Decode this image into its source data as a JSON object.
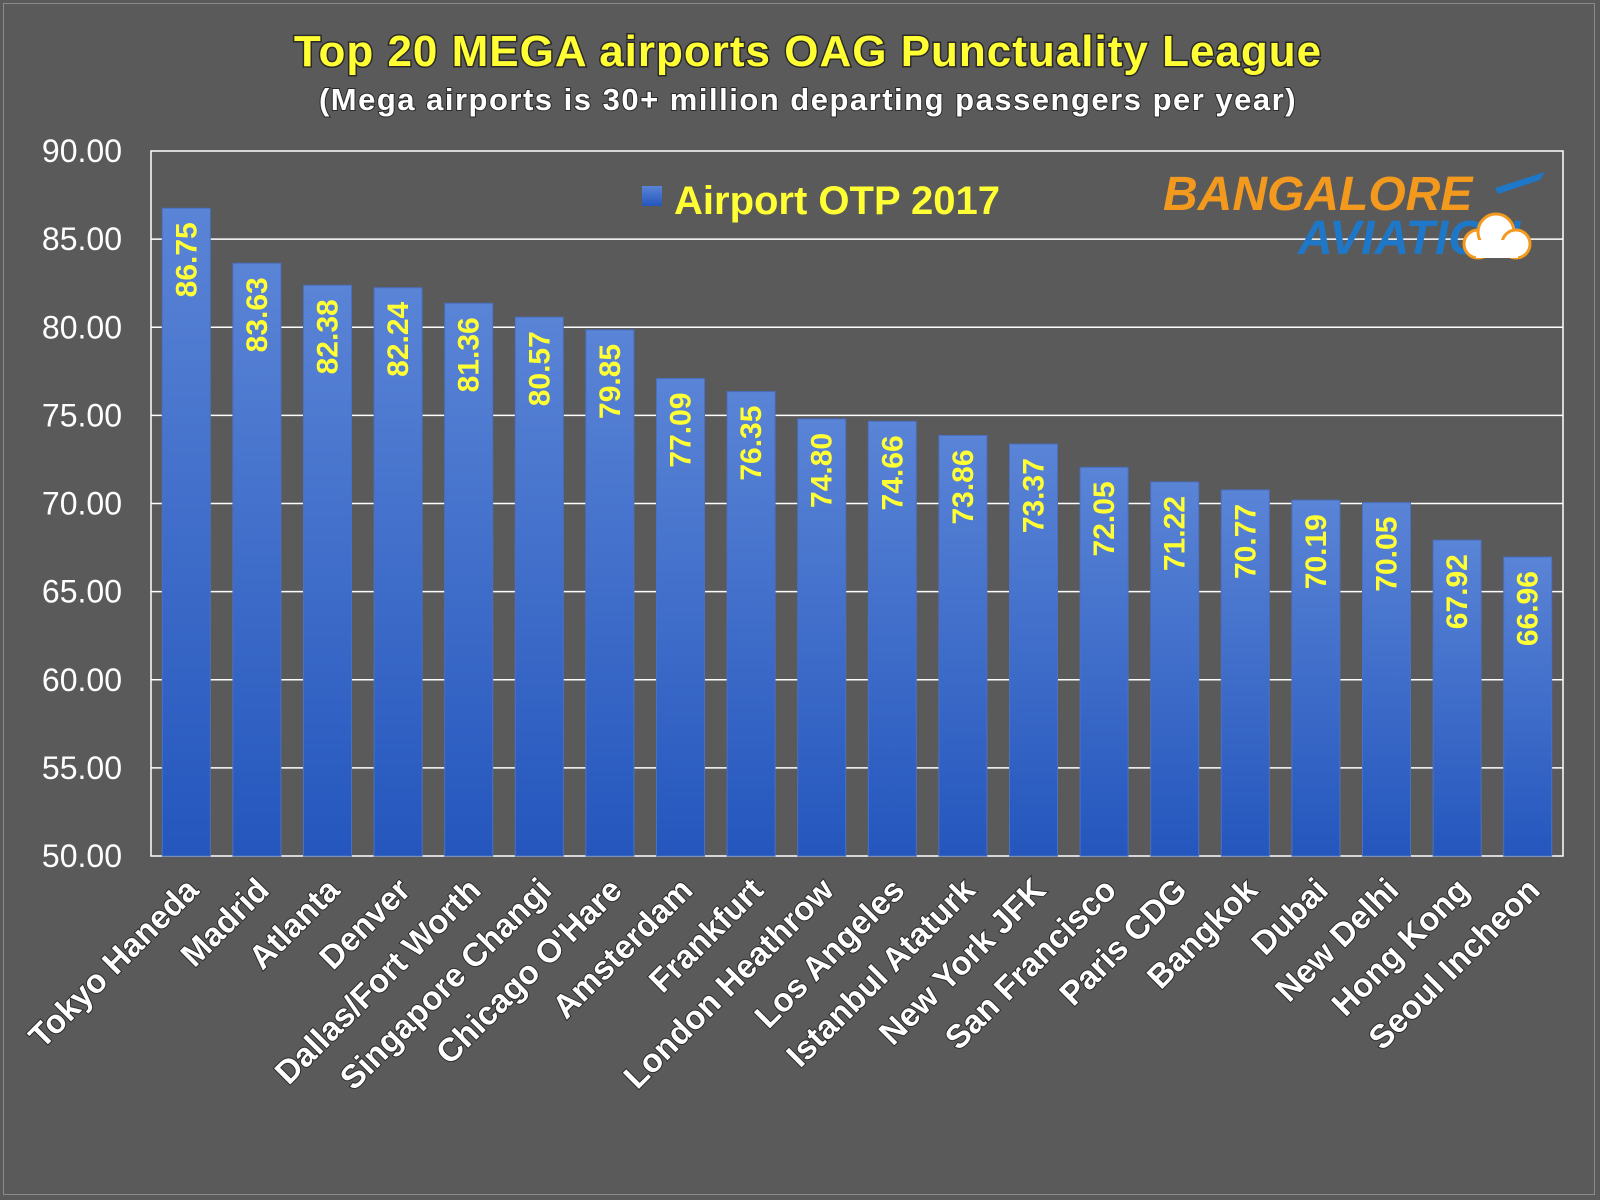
{
  "chart_data": {
    "type": "bar",
    "title": "Top 20 MEGA airports OAG Punctuality League",
    "subtitle": "(Mega airports is 30+ million departing passengers per year)",
    "categories": [
      "Tokyo Haneda",
      "Madrid",
      "Atlanta",
      "Denver",
      "Dallas/Fort Worth",
      "Singapore Changi",
      "Chicago O'Hare",
      "Amsterdam",
      "Frankfurt",
      "London Heathrow",
      "Los Angeles",
      "Istanbul Ataturk",
      "New York JFK",
      "San Francisco",
      "Paris CDG",
      "Bangkok",
      "Dubai",
      "New Delhi",
      "Hong Kong",
      "Seoul Incheon"
    ],
    "series": [
      {
        "name": "Airport OTP 2017",
        "values": [
          86.75,
          83.63,
          82.38,
          82.24,
          81.36,
          80.57,
          79.85,
          77.09,
          76.35,
          74.8,
          74.66,
          73.86,
          73.37,
          72.05,
          71.22,
          70.77,
          70.19,
          70.05,
          67.92,
          66.96
        ],
        "labels": [
          "86.75",
          "83.63",
          "82.38",
          "82.24",
          "81.36",
          "80.57",
          "79.85",
          "77.09",
          "76.35",
          "74.80",
          "74.66",
          "73.86",
          "73.37",
          "72.05",
          "71.22",
          "70.77",
          "70.19",
          "70.05",
          "67.92",
          "66.96"
        ]
      }
    ],
    "ylim": [
      50,
      90
    ],
    "yticks": [
      "50.00",
      "55.00",
      "60.00",
      "65.00",
      "70.00",
      "75.00",
      "80.00",
      "85.00",
      "90.00"
    ],
    "xlabel": "",
    "ylabel": "",
    "grid": true,
    "legend_position": "top-center",
    "colors": {
      "background": "#5a5a5a",
      "bar_top": "#5a84d6",
      "bar_bottom": "#2456bd",
      "data_label": "#ffff33",
      "title": "#ffff33",
      "gridline": "#ffffff"
    }
  },
  "logo": {
    "text_top": "BANGALORE",
    "text_bottom": "AVIATION"
  }
}
